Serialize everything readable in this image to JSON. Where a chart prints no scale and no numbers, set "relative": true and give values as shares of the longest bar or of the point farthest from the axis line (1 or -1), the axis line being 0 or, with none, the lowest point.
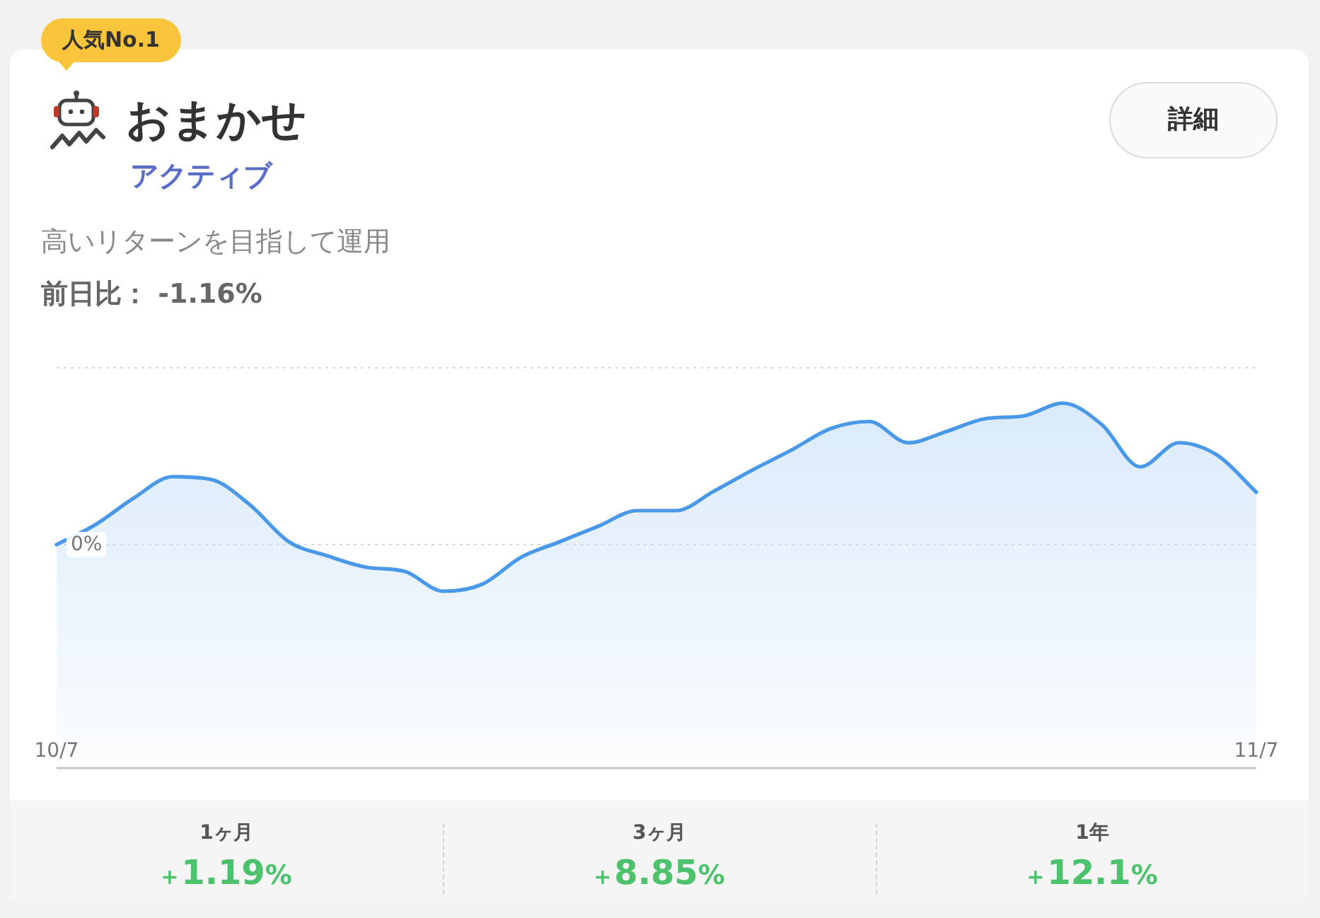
{
  "chart_data": {
    "type": "area",
    "title": "おまかせ",
    "subtitle": "アクティブ",
    "color": "#4a98e8",
    "relative": true,
    "categories": [
      "10/7",
      null,
      null,
      null,
      null,
      null,
      null,
      null,
      null,
      null,
      null,
      null,
      null,
      null,
      null,
      null,
      null,
      null,
      null,
      null,
      null,
      null,
      null,
      null,
      null,
      null,
      null,
      null,
      null,
      null,
      null,
      "11/7"
    ],
    "values": [
      0,
      0.14,
      0.33,
      0.48,
      0.46,
      0.28,
      0.02,
      -0.08,
      -0.16,
      -0.19,
      -0.33,
      -0.28,
      -0.09,
      0.02,
      0.13,
      0.24,
      0.24,
      0.38,
      0.53,
      0.67,
      0.82,
      0.87,
      0.72,
      0.8,
      0.89,
      0.91,
      1,
      0.85,
      0.55,
      0.72,
      0.63,
      0.37
    ],
    "ref_lines": [
      {
        "axis": "y",
        "value": 0,
        "label": "0%",
        "line_style": "dotted",
        "color": "#d9d9d9"
      },
      {
        "axis": "y",
        "value": 1.25,
        "line_style": "dotted",
        "color": "#d9d9d9"
      }
    ],
    "annotations": [
      "人気No.1",
      "詳細",
      "高いリターンを目指して運用",
      "前日比： -1.16%",
      "1ヶ月",
      "+1.19%",
      "3ヶ月",
      "+8.85%",
      "1年",
      "+12.1%"
    ]
  }
}
